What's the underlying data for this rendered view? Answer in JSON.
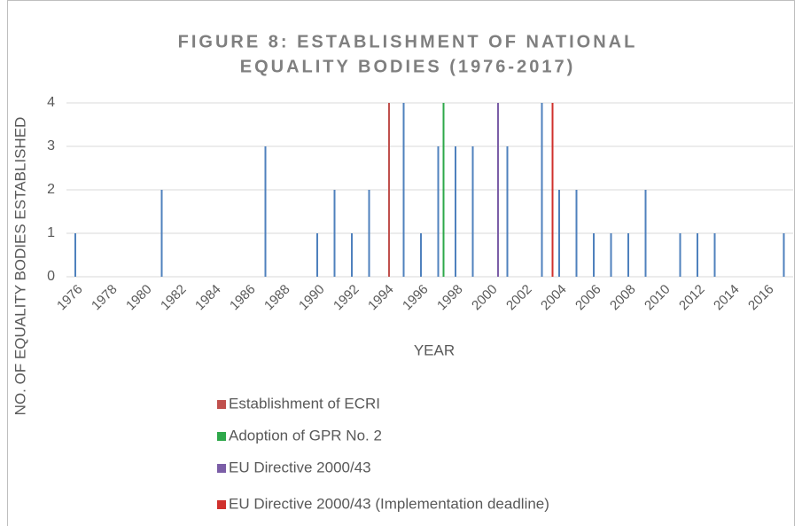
{
  "chart_data": {
    "type": "bar",
    "title": "FIGURE 8: ESTABLISHMENT OF NATIONAL EQUALITY BODIES (1976-2017)",
    "title_lines": [
      "FIGURE 8: ESTABLISHMENT OF NATIONAL",
      "EQUALITY BODIES (1976-2017)"
    ],
    "x_label": "YEAR",
    "y_label": "NO. OF EQUALITY BODIES ESTABLISHED",
    "categories": [
      1976,
      null,
      1978,
      null,
      1980,
      null,
      1982,
      null,
      1984,
      null,
      1986,
      null,
      1988,
      null,
      1990,
      null,
      1992,
      null,
      1994,
      null,
      1996,
      null,
      1998,
      null,
      2000,
      null,
      2002,
      null,
      2004,
      null,
      2006,
      null,
      2008,
      null,
      2010,
      null,
      2012,
      null,
      2014,
      null,
      2016,
      null
    ],
    "series": [
      {
        "color": "#4f81bd",
        "values": [
          1,
          null,
          null,
          null,
          null,
          2,
          null,
          null,
          null,
          null,
          null,
          3,
          null,
          null,
          1,
          2,
          1,
          2,
          null,
          4,
          1,
          3,
          3,
          3,
          null,
          3,
          null,
          4,
          2,
          2,
          1,
          1,
          1,
          2,
          null,
          1,
          1,
          1,
          null,
          null,
          null,
          1
        ]
      },
      {
        "name": "Establishment of ECRI",
        "color": "#c0504d",
        "values": [
          null,
          null,
          null,
          null,
          null,
          null,
          null,
          null,
          null,
          null,
          null,
          null,
          null,
          null,
          null,
          null,
          null,
          null,
          4,
          null,
          null,
          null,
          null,
          null,
          null,
          null,
          null,
          null,
          null,
          null,
          null,
          null,
          null,
          null,
          null,
          null,
          null,
          null,
          null,
          null,
          null,
          null
        ]
      },
      {
        "name": "Adoption of GPR No. 2",
        "color": "#2ea84a",
        "values": [
          null,
          null,
          null,
          null,
          null,
          null,
          null,
          null,
          null,
          null,
          null,
          null,
          null,
          null,
          null,
          null,
          null,
          null,
          null,
          null,
          null,
          4,
          null,
          null,
          null,
          null,
          null,
          null,
          null,
          null,
          null,
          null,
          null,
          null,
          null,
          null,
          null,
          null,
          null,
          null,
          null,
          null
        ]
      },
      {
        "name": "EU Directive 2000/43",
        "color": "#7b5ea7",
        "values": [
          null,
          null,
          null,
          null,
          null,
          null,
          null,
          null,
          null,
          null,
          null,
          null,
          null,
          null,
          null,
          null,
          null,
          null,
          null,
          null,
          null,
          null,
          null,
          null,
          4,
          null,
          null,
          null,
          null,
          null,
          null,
          null,
          null,
          null,
          null,
          null,
          null,
          null,
          null,
          null,
          null,
          null
        ]
      },
      {
        "name": "EU Directive 2000/43 (Implementation deadline)",
        "color": "#d0312d",
        "values": [
          null,
          null,
          null,
          null,
          null,
          null,
          null,
          null,
          null,
          null,
          null,
          null,
          null,
          null,
          null,
          null,
          null,
          null,
          null,
          null,
          null,
          null,
          null,
          null,
          null,
          null,
          null,
          4,
          null,
          null,
          null,
          null,
          null,
          null,
          null,
          null,
          null,
          null,
          null,
          null,
          null,
          null
        ]
      }
    ],
    "ylim": [
      0,
      4
    ],
    "yticks": [
      0,
      1,
      2,
      3,
      4
    ],
    "grid": true
  }
}
